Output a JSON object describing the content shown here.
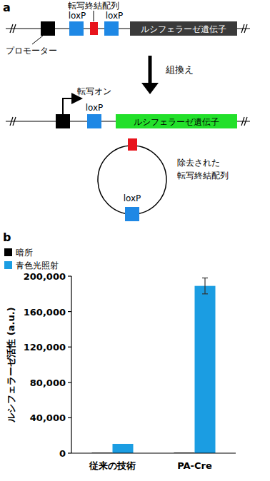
{
  "diagram": {
    "panel": "a",
    "terminator_label": "転写終結配列",
    "loxp_labels": [
      "loxP",
      "loxP"
    ],
    "gene": "ルシフェラーゼ遺伝子",
    "promoter": "プロモーター",
    "step": "組換え",
    "transcription": "転写オン",
    "after_loxp": "loxP",
    "after_gene": "ルシフェラーゼ遺伝子",
    "excised_loxp": "loxP",
    "excised_label": [
      "除去された",
      "転写終結配列"
    ]
  },
  "chart_data": {
    "type": "bar",
    "title": "b",
    "y_label": "ルシフェラーゼ活性 (a.u.)",
    "categories": [
      "従来の技術",
      "PA-Cre"
    ],
    "series": [
      {
        "name": "暗所",
        "color": "#000000",
        "values": [
          500,
          600
        ]
      },
      {
        "name": "青色光照射",
        "color": "#1b9de2",
        "values": [
          10500,
          189000
        ],
        "errors": [
          null,
          9000
        ]
      }
    ],
    "ylim": [
      0,
      200000
    ],
    "yticks": [
      0,
      {
        "value": 40000,
        "label": "40,000"
      },
      {
        "value": 80000,
        "label": "80,000"
      },
      {
        "value": 120000,
        "label": "120,000"
      },
      {
        "value": 160000,
        "label": "160,000"
      },
      {
        "value": 200000,
        "label": "200,000"
      }
    ],
    "grid": false,
    "legend": "top-left"
  }
}
